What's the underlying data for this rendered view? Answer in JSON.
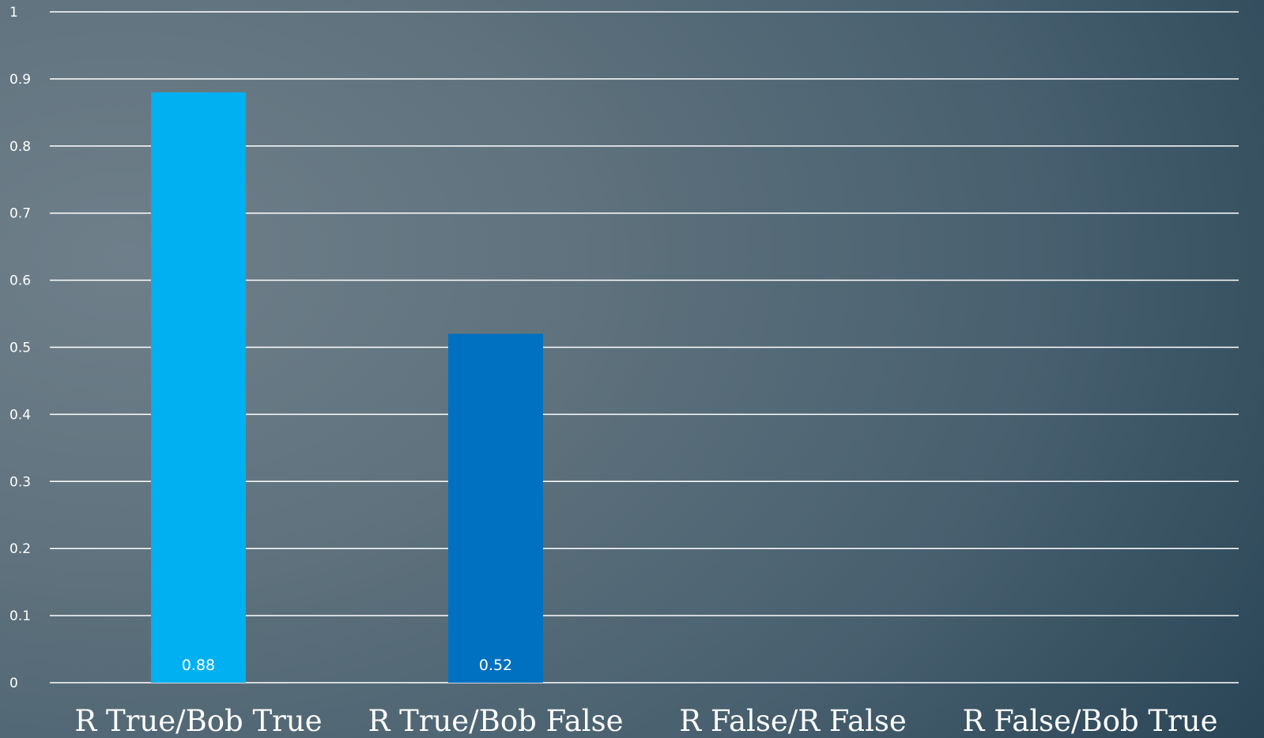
{
  "chart_data": {
    "type": "bar",
    "title": "",
    "xlabel": "",
    "ylabel": "",
    "categories": [
      "R True/Bob True",
      "R True/Bob False",
      "R False/R False",
      "R False/Bob True"
    ],
    "values": [
      0.88,
      0.52,
      null,
      null
    ],
    "data_labels": [
      "0.88",
      "0.52",
      "",
      ""
    ],
    "ylim": [
      0,
      1
    ],
    "yticks": [
      "0",
      "0.1",
      "0.2",
      "0.3",
      "0.4",
      "0.5",
      "0.6",
      "0.7",
      "0.8",
      "0.9",
      "1"
    ],
    "grid": true,
    "legend": "none",
    "colors": [
      "#00b0f0",
      "#0070c0",
      "#00b0f0",
      "#0070c0"
    ]
  }
}
